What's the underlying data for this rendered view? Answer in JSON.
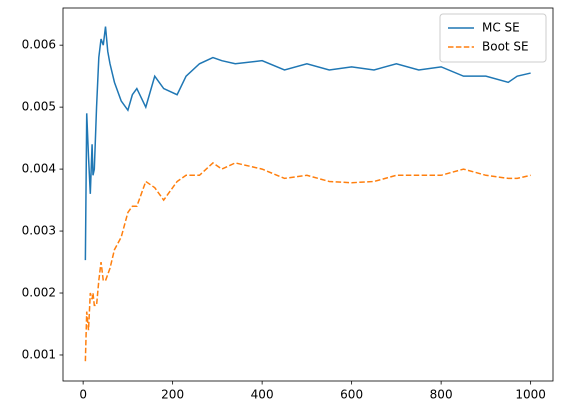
{
  "chart_data": {
    "type": "line",
    "x": [
      5,
      8,
      12,
      16,
      20,
      22,
      25,
      30,
      35,
      40,
      45,
      50,
      55,
      60,
      70,
      85,
      100,
      110,
      120,
      140,
      160,
      180,
      210,
      230,
      260,
      290,
      310,
      340,
      400,
      450,
      500,
      550,
      600,
      650,
      700,
      750,
      800,
      850,
      900,
      950,
      970,
      1000
    ],
    "series": [
      {
        "name": "MC SE",
        "color": "#1f77b4",
        "linestyle": "solid",
        "values": [
          0.00253,
          0.0049,
          0.0042,
          0.0036,
          0.0044,
          0.0039,
          0.004,
          0.005,
          0.0058,
          0.0061,
          0.006,
          0.0063,
          0.0059,
          0.0057,
          0.0054,
          0.0051,
          0.00495,
          0.0052,
          0.0053,
          0.005,
          0.0055,
          0.0053,
          0.0052,
          0.0055,
          0.0057,
          0.0058,
          0.00575,
          0.0057,
          0.00575,
          0.0056,
          0.0057,
          0.0056,
          0.00565,
          0.0056,
          0.0057,
          0.0056,
          0.00565,
          0.0055,
          0.0055,
          0.0054,
          0.0055,
          0.00555
        ]
      },
      {
        "name": "Boot SE",
        "color": "#ff7f0e",
        "linestyle": "dashed",
        "values": [
          0.0009,
          0.0017,
          0.0014,
          0.002,
          0.0019,
          0.002,
          0.0018,
          0.0018,
          0.0022,
          0.0025,
          0.0022,
          0.0022,
          0.0023,
          0.0024,
          0.0027,
          0.0029,
          0.0033,
          0.0034,
          0.0034,
          0.0038,
          0.0037,
          0.0035,
          0.0038,
          0.0039,
          0.0039,
          0.0041,
          0.004,
          0.0041,
          0.004,
          0.00385,
          0.0039,
          0.0038,
          0.00378,
          0.0038,
          0.0039,
          0.0039,
          0.0039,
          0.004,
          0.0039,
          0.00385,
          0.00385,
          0.0039
        ]
      }
    ],
    "xlim": [
      -45,
      1050
    ],
    "xticks": [
      0,
      200,
      400,
      600,
      800,
      1000
    ],
    "ylim": [
      0.00058,
      0.0066
    ],
    "yticks": [
      0.001,
      0.002,
      0.003,
      0.004,
      0.005,
      0.006
    ],
    "legend": "upper right"
  }
}
